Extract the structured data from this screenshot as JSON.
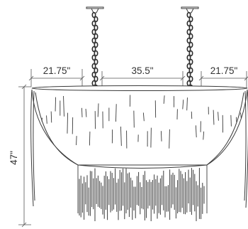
{
  "dimensions": {
    "left_width": "21.75\"",
    "center_width": "35.5\"",
    "right_width": "21.75\"",
    "height": "47\""
  },
  "colors": {
    "line": "#3a3a3a",
    "chain": "#2e2e2e",
    "dimension_line": "#555555",
    "background": "#ffffff"
  }
}
